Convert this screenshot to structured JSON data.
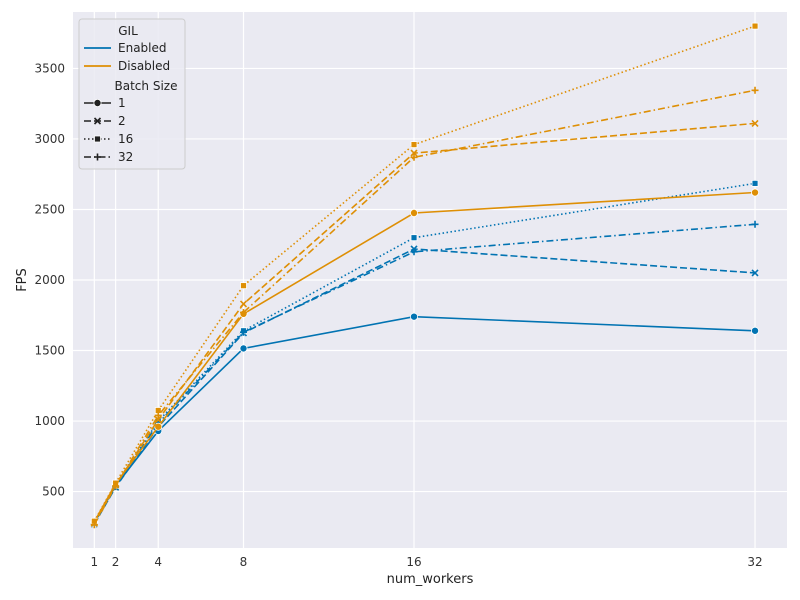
{
  "chart_data": {
    "type": "line",
    "title": "",
    "xlabel": "num_workers",
    "ylabel": "FPS",
    "xlim": [
      0,
      33.5
    ],
    "ylim": [
      100,
      3900
    ],
    "x_ticks": [
      1,
      2,
      4,
      8,
      16,
      32
    ],
    "y_ticks": [
      500,
      1000,
      1500,
      2000,
      2500,
      3000,
      3500
    ],
    "grid": true,
    "legend_position": "top-left",
    "legend": {
      "hue_title": "GIL",
      "hue_entries": [
        {
          "label": "Enabled",
          "color": "#0173b2"
        },
        {
          "label": "Disabled",
          "color": "#de8f05"
        }
      ],
      "style_title": "Batch Size",
      "style_entries": [
        {
          "label": "1",
          "dash": "solid",
          "marker": "circle"
        },
        {
          "label": "2",
          "dash": "dashed",
          "marker": "x"
        },
        {
          "label": "16",
          "dash": "dotted",
          "marker": "square"
        },
        {
          "label": "32",
          "dash": "dashdot",
          "marker": "plus"
        }
      ]
    },
    "x": [
      1,
      2,
      4,
      8,
      16,
      32
    ],
    "series": [
      {
        "name": "Enabled, batch 1",
        "gil": "Enabled",
        "batch": "1",
        "values": [
          280,
          540,
          930,
          1515,
          1740,
          1640
        ]
      },
      {
        "name": "Enabled, batch 2",
        "gil": "Enabled",
        "batch": "2",
        "values": [
          270,
          530,
          960,
          1625,
          2220,
          2050
        ]
      },
      {
        "name": "Enabled, batch 16",
        "gil": "Enabled",
        "batch": "16",
        "values": [
          275,
          545,
          1000,
          1640,
          2300,
          2685
        ]
      },
      {
        "name": "Enabled, batch 32",
        "gil": "Enabled",
        "batch": "32",
        "values": [
          270,
          535,
          985,
          1630,
          2200,
          2395
        ]
      },
      {
        "name": "Disabled, batch 1",
        "gil": "Disabled",
        "batch": "1",
        "values": [
          285,
          555,
          960,
          1760,
          2475,
          2620
        ]
      },
      {
        "name": "Disabled, batch 2",
        "gil": "Disabled",
        "batch": "2",
        "values": [
          275,
          545,
          1010,
          1830,
          2900,
          3110
        ]
      },
      {
        "name": "Disabled, batch 16",
        "gil": "Disabled",
        "batch": "16",
        "values": [
          290,
          560,
          1075,
          1960,
          2960,
          3800
        ]
      },
      {
        "name": "Disabled, batch 32",
        "gil": "Disabled",
        "batch": "32",
        "values": [
          265,
          540,
          1040,
          1770,
          2870,
          3345
        ]
      }
    ]
  },
  "style": {
    "background_panel": "#eaeaf2",
    "grid_color": "#ffffff",
    "enabled_color": "#0173b2",
    "disabled_color": "#de8f05"
  }
}
